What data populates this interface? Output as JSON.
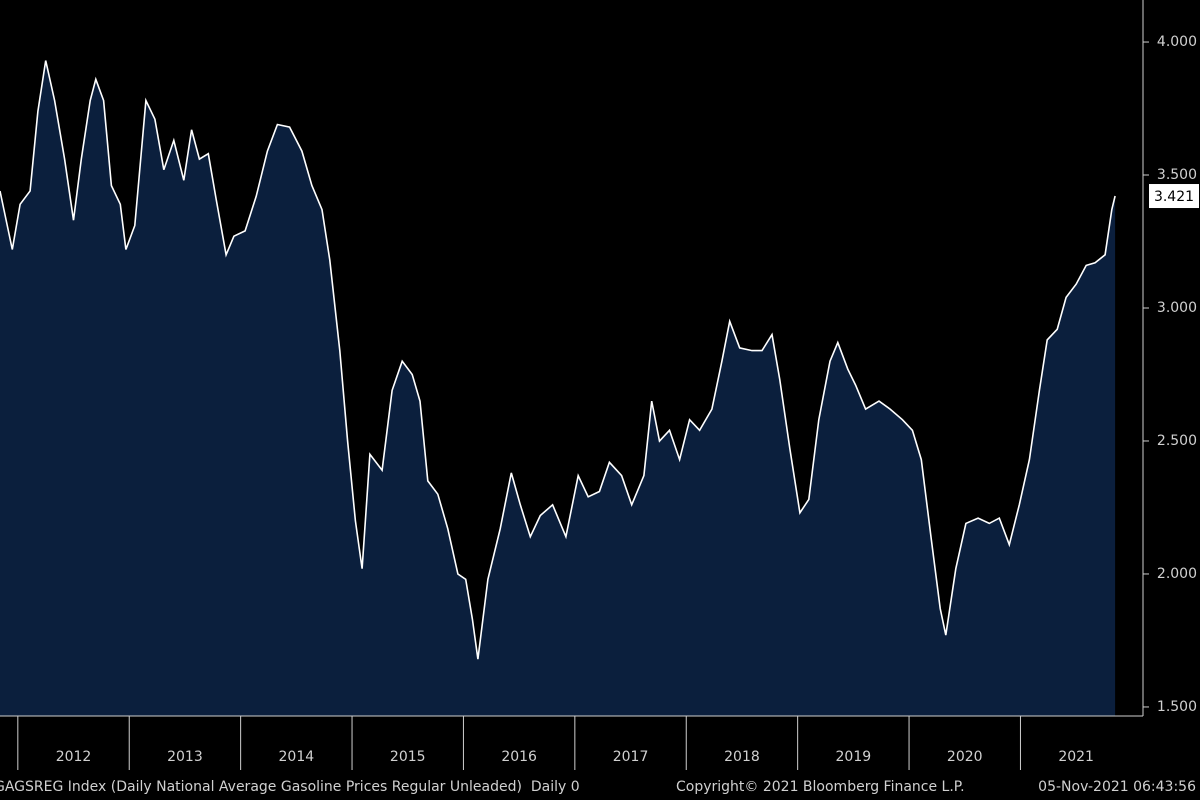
{
  "chart_data": {
    "type": "area",
    "x": [
      2011.84,
      2011.95,
      2012.02,
      2012.11,
      2012.18,
      2012.25,
      2012.33,
      2012.42,
      2012.5,
      2012.57,
      2012.65,
      2012.7,
      2012.77,
      2012.84,
      2012.92,
      2012.97,
      2013.05,
      2013.15,
      2013.23,
      2013.31,
      2013.4,
      2013.49,
      2013.56,
      2013.63,
      2013.71,
      2013.78,
      2013.87,
      2013.94,
      2014.04,
      2014.14,
      2014.24,
      2014.33,
      2014.44,
      2014.55,
      2014.64,
      2014.73,
      2014.8,
      2014.89,
      2014.96,
      2015.03,
      2015.09,
      2015.16,
      2015.27,
      2015.36,
      2015.45,
      2015.54,
      2015.61,
      2015.68,
      2015.77,
      2015.86,
      2015.95,
      2016.02,
      2016.08,
      2016.13,
      2016.22,
      2016.33,
      2016.43,
      2016.51,
      2016.6,
      2016.69,
      2016.8,
      2016.92,
      2017.03,
      2017.12,
      2017.22,
      2017.31,
      2017.42,
      2017.51,
      2017.62,
      2017.69,
      2017.76,
      2017.85,
      2017.94,
      2018.03,
      2018.12,
      2018.23,
      2018.32,
      2018.39,
      2018.48,
      2018.59,
      2018.68,
      2018.77,
      2018.84,
      2018.93,
      2019.02,
      2019.1,
      2019.19,
      2019.29,
      2019.36,
      2019.45,
      2019.52,
      2019.61,
      2019.73,
      2019.83,
      2019.94,
      2020.03,
      2020.11,
      2020.2,
      2020.28,
      2020.33,
      2020.42,
      2020.51,
      2020.62,
      2020.72,
      2020.81,
      2020.9,
      2020.99,
      2021.08,
      2021.17,
      2021.24,
      2021.33,
      2021.41,
      2021.5,
      2021.59,
      2021.67,
      2021.76,
      2021.82,
      2021.85
    ],
    "values": [
      3.44,
      3.22,
      3.39,
      3.44,
      3.74,
      3.93,
      3.78,
      3.56,
      3.33,
      3.56,
      3.78,
      3.86,
      3.78,
      3.46,
      3.39,
      3.22,
      3.31,
      3.78,
      3.71,
      3.52,
      3.63,
      3.48,
      3.67,
      3.56,
      3.58,
      3.41,
      3.2,
      3.27,
      3.29,
      3.42,
      3.59,
      3.69,
      3.68,
      3.59,
      3.46,
      3.37,
      3.18,
      2.84,
      2.5,
      2.2,
      2.02,
      2.45,
      2.39,
      2.69,
      2.8,
      2.75,
      2.65,
      2.35,
      2.3,
      2.17,
      2.0,
      1.98,
      1.83,
      1.68,
      1.98,
      2.17,
      2.38,
      2.26,
      2.14,
      2.22,
      2.26,
      2.14,
      2.37,
      2.29,
      2.31,
      2.42,
      2.37,
      2.26,
      2.37,
      2.65,
      2.5,
      2.54,
      2.43,
      2.58,
      2.54,
      2.62,
      2.8,
      2.95,
      2.85,
      2.84,
      2.84,
      2.9,
      2.73,
      2.47,
      2.23,
      2.28,
      2.58,
      2.8,
      2.87,
      2.77,
      2.71,
      2.62,
      2.65,
      2.62,
      2.58,
      2.54,
      2.43,
      2.13,
      1.87,
      1.77,
      2.02,
      2.19,
      2.21,
      2.19,
      2.21,
      2.11,
      2.26,
      2.43,
      2.69,
      2.88,
      2.92,
      3.04,
      3.09,
      3.16,
      3.17,
      3.2,
      3.37,
      3.421
    ],
    "fill_color": "#0b1f3d",
    "line_color": "#ffffff",
    "xlim": [
      2011.84,
      2022.1
    ],
    "xticks": [
      2012,
      2013,
      2014,
      2015,
      2016,
      2017,
      2018,
      2019,
      2020,
      2021
    ],
    "ylim": [
      1.466,
      4.158
    ],
    "yticks": [
      {
        "value": 1.5,
        "label": "1.500"
      },
      {
        "value": 2,
        "label": "2.000"
      },
      {
        "value": 2.5,
        "label": "2.500"
      },
      {
        "value": 3,
        "label": "3.000"
      },
      {
        "value": 3.5,
        "label": "3.500"
      },
      {
        "value": 4,
        "label": "4.000"
      }
    ],
    "source_label": "GAGSREG Index (Daily National Average Gasoline Prices Regular Unleaded)  Daily 0",
    "copyright": "Copyright© 2021 Bloomberg Finance L.P.",
    "timestamp": "05-Nov-2021 06:43:56"
  }
}
